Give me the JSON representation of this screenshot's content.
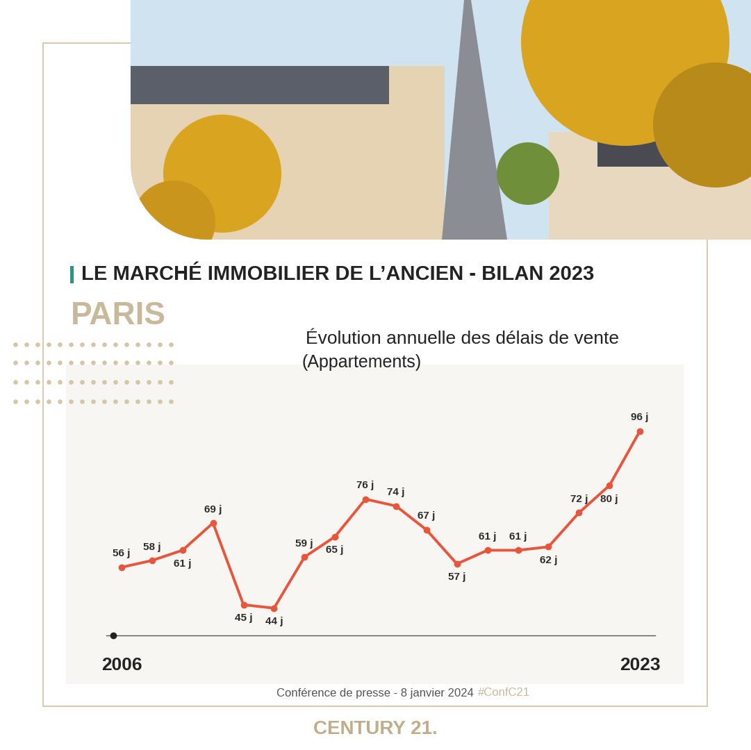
{
  "header": {
    "title": "LE MARCHÉ IMMOBILIER DE L’ANCIEN - BILAN 2023",
    "city": "PARIS"
  },
  "chart_data": {
    "type": "line",
    "title": "Évolution annuelle des délais de vente",
    "subtitle": "(Appartements)",
    "x": [
      2006,
      2007,
      2008,
      2009,
      2010,
      2011,
      2012,
      2013,
      2014,
      2015,
      2016,
      2017,
      2018,
      2019,
      2020,
      2021,
      2022,
      2023
    ],
    "values": [
      56,
      58,
      61,
      69,
      45,
      44,
      59,
      65,
      76,
      74,
      67,
      57,
      61,
      61,
      62,
      72,
      80,
      96
    ],
    "value_labels": [
      "56 j",
      "58 j",
      "61 j",
      "69 j",
      "45 j",
      "44 j",
      "59 j",
      "65 j",
      "76 j",
      "74 j",
      "67 j",
      "57 j",
      "61 j",
      "61 j",
      "62 j",
      "72 j",
      "80 j",
      "96 j"
    ],
    "xlim": [
      2005.5,
      2023.5
    ],
    "xticks": [
      2006,
      2023
    ],
    "ylim": [
      36,
      110
    ],
    "tick_labels": "x",
    "data_labels": true,
    "grid": false,
    "color": "#e8553a",
    "marker": "o",
    "line_style": "solid"
  },
  "footer": {
    "note": "Conférence de presse - 8 janvier 2024",
    "hashtag": "#ConfC21",
    "brand": "CENTURY 21."
  }
}
